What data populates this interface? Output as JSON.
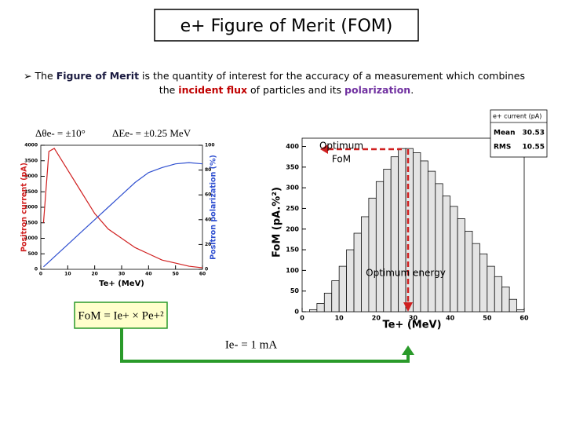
{
  "slide": {
    "title": "e+ Figure of Merit (FOM)",
    "bullet": [
      [
        {
          "text": "The "
        },
        {
          "text": "Figure of Merit",
          "bold": true,
          "color": "#1a1a40"
        },
        {
          "text": " is the quantity of interest for the accuracy of a measurement which combines"
        }
      ],
      [
        {
          "text": "the "
        },
        {
          "text": "incident flux",
          "bold": true,
          "color": "#c00000"
        },
        {
          "text": " of particles and its "
        },
        {
          "text": "polarization",
          "bold": true,
          "color": "#7030a0"
        },
        {
          "text": "."
        }
      ]
    ],
    "formulas": [
      "FoM = Ie+ × Pe+²",
      "Ie- = 1 mA"
    ]
  },
  "chart_data": [
    {
      "type": "line",
      "annotations": [
        "Δθe- = ±10°",
        "ΔEe- = ±0.25 MeV"
      ],
      "xlabel": "Te+ (MeV)",
      "ylabel": "Positron current (pA)",
      "y2label": "Positron polarization (%)",
      "x": [
        1,
        3,
        5,
        10,
        15,
        20,
        25,
        30,
        35,
        40,
        45,
        50,
        55,
        60
      ],
      "series": [
        {
          "color": "#d02020",
          "values": [
            1500,
            3800,
            3900,
            3200,
            2500,
            1800,
            1300,
            1000,
            700,
            500,
            300,
            200,
            100,
            50
          ]
        },
        {
          "color": "#3050d0",
          "axis": "y2",
          "values": [
            2,
            6,
            10,
            20,
            30,
            40,
            50,
            60,
            70,
            78,
            82,
            85,
            86,
            85
          ]
        }
      ],
      "xlim": [
        0,
        60
      ],
      "xticks": [
        0,
        10,
        20,
        30,
        40,
        50,
        60
      ],
      "ylim": [
        0,
        4000
      ],
      "yticks": [
        0,
        500,
        1000,
        1500,
        2000,
        2500,
        3000,
        3500,
        4000
      ],
      "y2lim": [
        0,
        100
      ],
      "y2ticks": [
        0,
        20,
        40,
        60,
        80,
        100
      ]
    },
    {
      "type": "histogram",
      "annotations": [
        "Optimum",
        "FoM",
        "Optimum energy"
      ],
      "xlabel": "Te+ (MeV)",
      "ylabel": "FoM (pA.%²)",
      "color": "#e4e4e4",
      "bins": [
        0,
        2,
        4,
        6,
        8,
        10,
        12,
        14,
        16,
        18,
        20,
        22,
        24,
        26,
        28,
        30,
        32,
        34,
        36,
        38,
        40,
        42,
        44,
        46,
        48,
        50,
        52,
        54,
        56,
        58,
        60
      ],
      "counts": [
        0,
        5,
        20,
        45,
        75,
        110,
        150,
        190,
        230,
        275,
        315,
        345,
        375,
        395,
        395,
        385,
        365,
        340,
        310,
        280,
        255,
        225,
        195,
        165,
        140,
        110,
        85,
        60,
        30,
        5
      ],
      "xlim": [
        0,
        60
      ],
      "xticks": [
        0,
        10,
        20,
        30,
        40,
        50,
        60
      ],
      "ylim": [
        0,
        420
      ],
      "yticks": [
        0,
        50,
        100,
        150,
        200,
        250,
        300,
        350,
        400
      ],
      "stats": {
        "title": "e+ current (pA)",
        "rows": [
          [
            "Mean",
            "30.53"
          ],
          [
            "RMS",
            "10.55"
          ]
        ]
      }
    }
  ]
}
